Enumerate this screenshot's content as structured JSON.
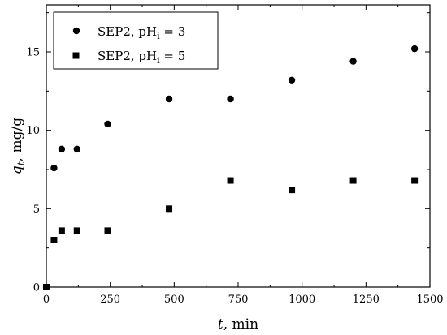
{
  "chart_data": {
    "type": "scatter",
    "title": "",
    "xlabel": {
      "var": "t",
      "rest": ", min"
    },
    "ylabel": {
      "var": "q",
      "sub": "t",
      "rest": ", mg/g"
    },
    "xlim": [
      0,
      1500
    ],
    "ylim": [
      0,
      18
    ],
    "xticks": [
      0,
      250,
      500,
      750,
      1000,
      1250,
      1500
    ],
    "yticks": [
      0,
      5,
      10,
      15
    ],
    "grid": false,
    "legend_position": "top-left",
    "series": [
      {
        "name": "SEP2, pH",
        "name_sub": "i",
        "name_suffix": " = 3",
        "marker": "circle",
        "x": [
          0,
          30,
          60,
          120,
          240,
          480,
          720,
          960,
          1200,
          1440
        ],
        "y": [
          0,
          7.6,
          8.8,
          8.8,
          10.4,
          12.0,
          12.0,
          13.2,
          14.4,
          15.2
        ]
      },
      {
        "name": "SEP2, pH",
        "name_sub": "i",
        "name_suffix": " = 5",
        "marker": "square",
        "x": [
          0,
          30,
          60,
          120,
          240,
          480,
          720,
          960,
          1200,
          1440
        ],
        "y": [
          0,
          3.0,
          3.6,
          3.6,
          3.6,
          5.0,
          6.8,
          6.2,
          6.8,
          6.8
        ]
      }
    ]
  }
}
